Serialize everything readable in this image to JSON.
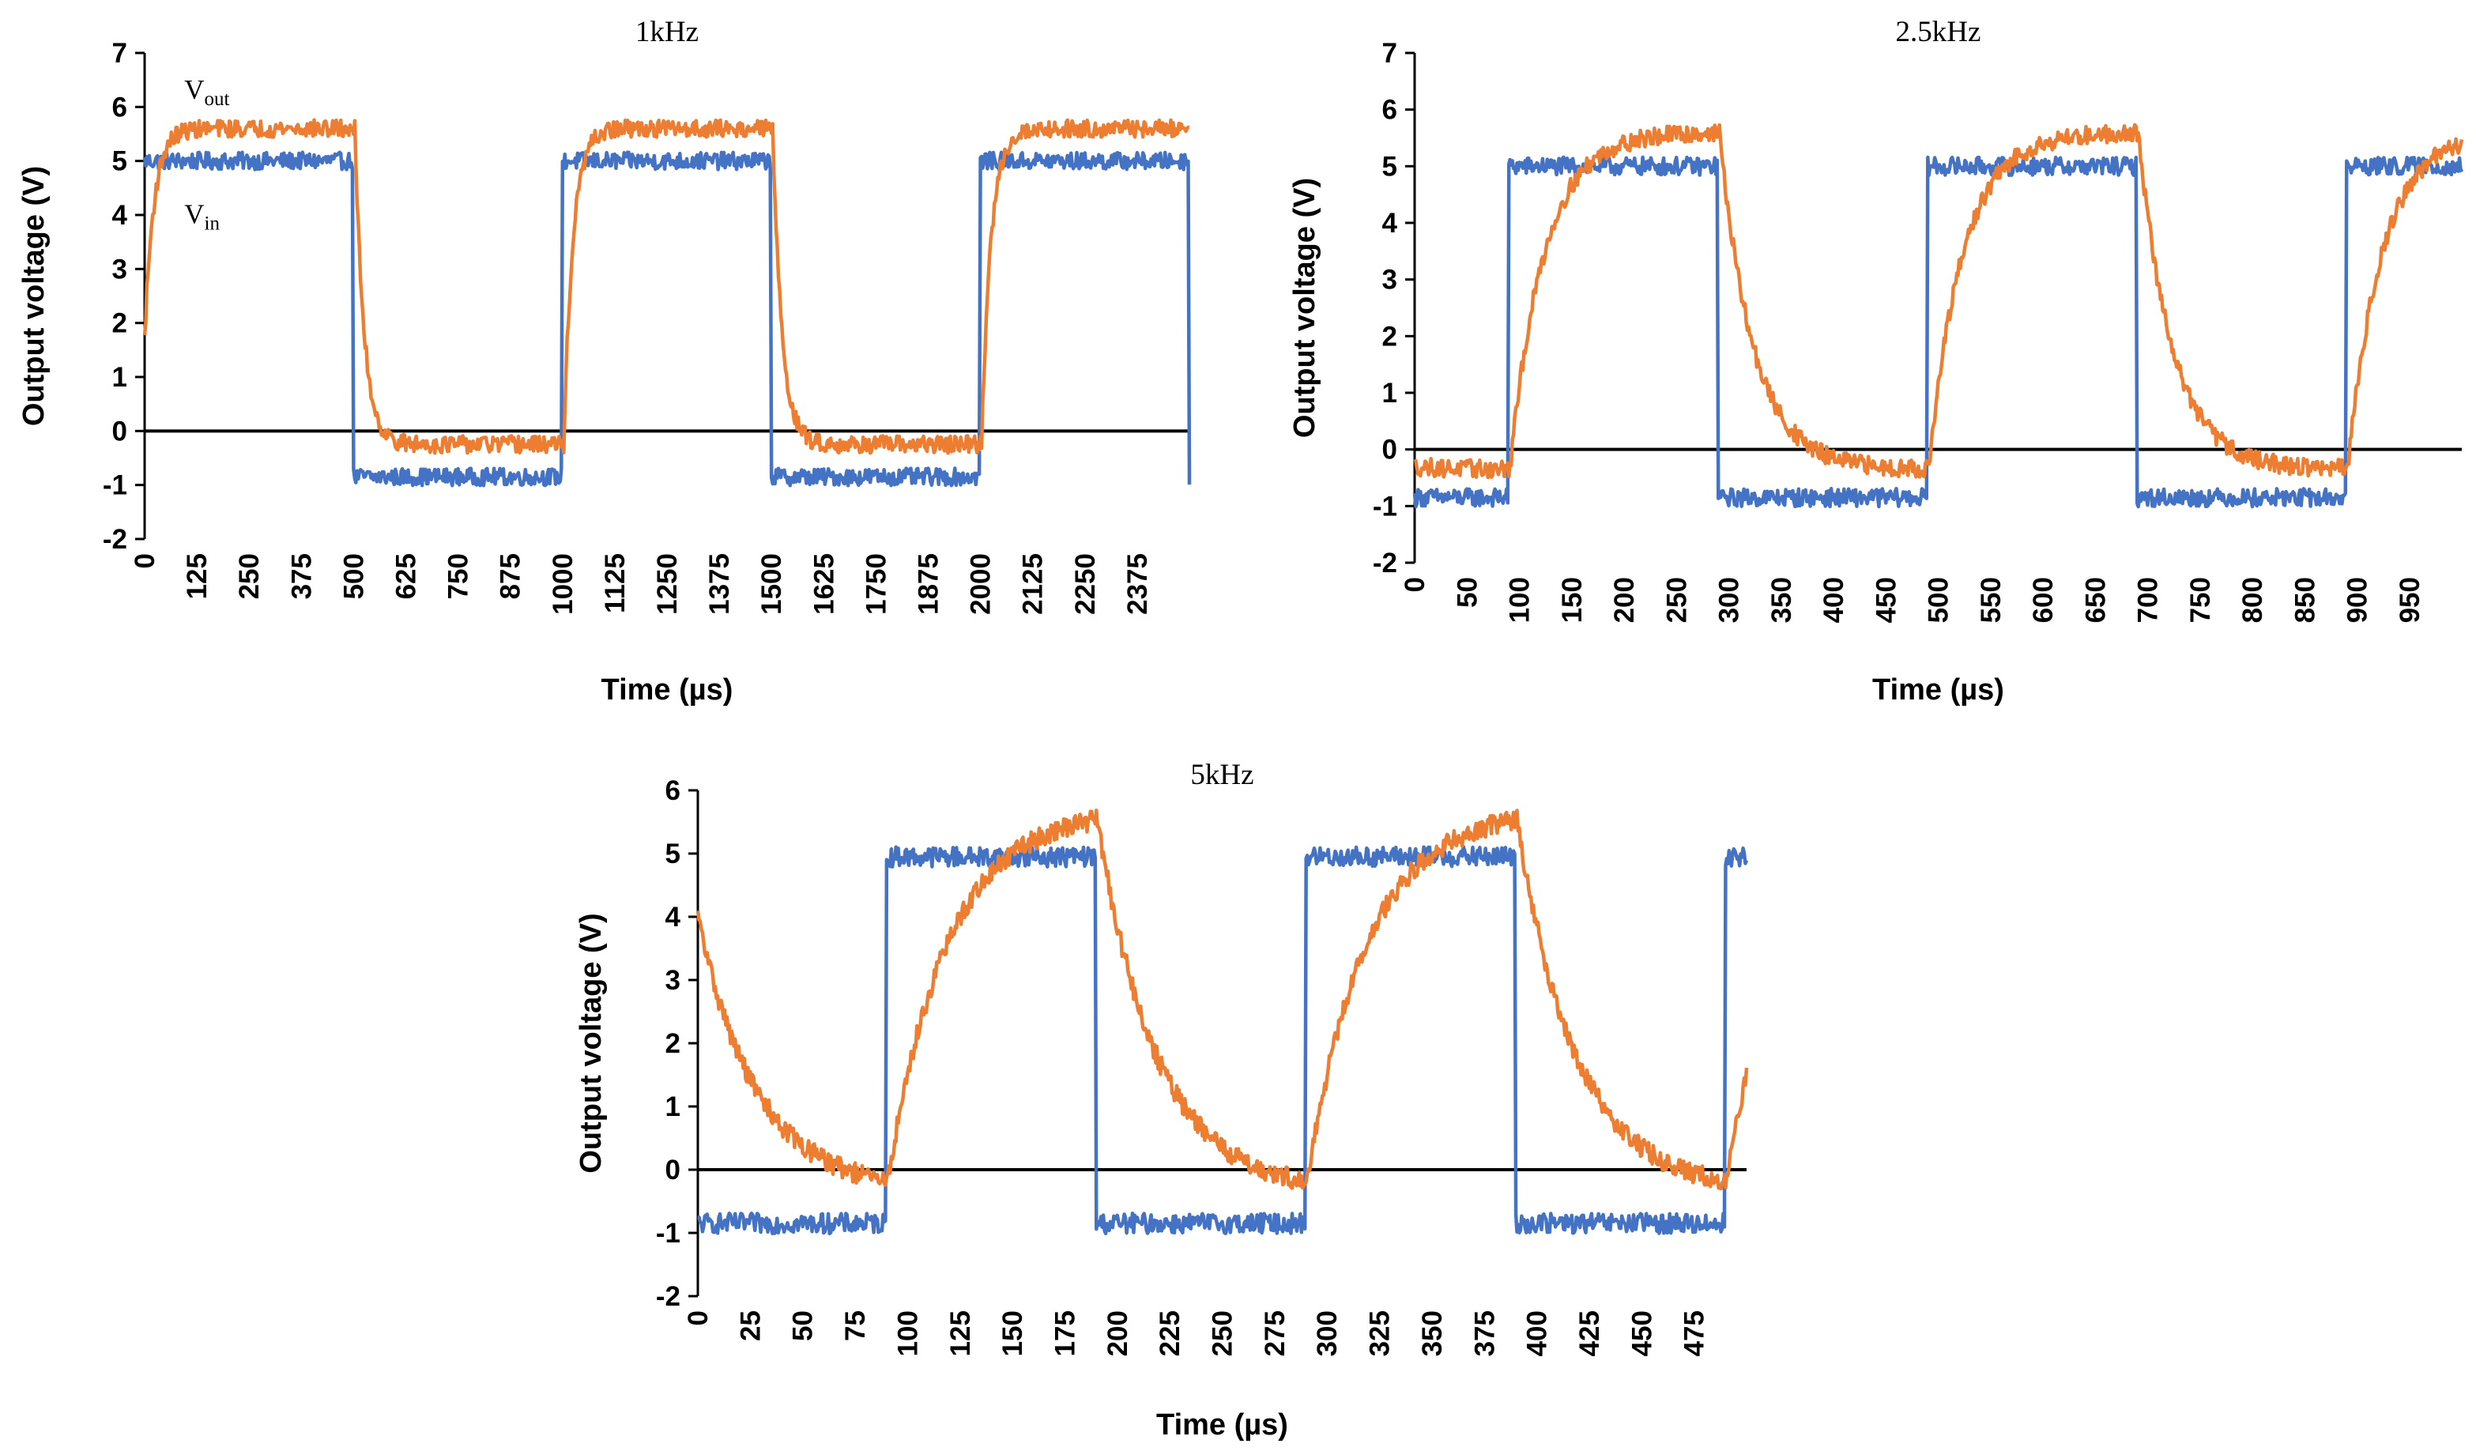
{
  "colors": {
    "vin": "#4472C4",
    "vout": "#ED7D31",
    "axis": "#000000"
  },
  "chart_data": [
    {
      "type": "line",
      "title": "1kHz",
      "xlabel": "Time (µs)",
      "ylabel": "Output voltage (V)",
      "xlim": [
        0,
        2500
      ],
      "ylim": [
        -2,
        7
      ],
      "xticks": [
        0,
        125,
        250,
        375,
        500,
        625,
        750,
        875,
        1000,
        1125,
        1250,
        1375,
        1500,
        1625,
        1750,
        1875,
        2000,
        2125,
        2250,
        2375
      ],
      "yticks": [
        -2,
        -1,
        0,
        1,
        2,
        3,
        4,
        5,
        6,
        7
      ],
      "annotations": [
        {
          "main": "V",
          "sub": "out",
          "x": 95,
          "y": 6.15
        },
        {
          "main": "V",
          "sub": "in",
          "x": 95,
          "y": 3.85
        }
      ],
      "series": [
        {
          "name": "Vin",
          "key": "vin",
          "level_high": 5.0,
          "level_low": -0.85,
          "period": 1000,
          "first_rise": 0,
          "rise_time": 6,
          "high_first": true
        },
        {
          "name": "Vout",
          "key": "vout",
          "level_high": 5.6,
          "level_low": -0.25,
          "period": 1000,
          "first_rise": 0,
          "start": 1.7,
          "tau": 22,
          "lag": 3,
          "high_first": true
        }
      ]
    },
    {
      "type": "line",
      "title": "2.5kHz",
      "xlabel": "Time (µs)",
      "ylabel": "Output voltage (V)",
      "xlim": [
        0,
        1000
      ],
      "ylim": [
        -2,
        7
      ],
      "xticks": [
        0,
        50,
        100,
        150,
        200,
        250,
        300,
        350,
        400,
        450,
        500,
        550,
        600,
        650,
        700,
        750,
        800,
        850,
        900,
        950
      ],
      "yticks": [
        -2,
        -1,
        0,
        1,
        2,
        3,
        4,
        5,
        6,
        7
      ],
      "annotations": [],
      "series": [
        {
          "name": "Vin",
          "key": "vin",
          "level_high": 5.0,
          "level_low": -0.85,
          "period": 400,
          "first_rise": 90,
          "rise_time": 3,
          "high_first": false
        },
        {
          "name": "Vout",
          "key": "vout",
          "level_high": 5.6,
          "level_low": -0.35,
          "period": 400,
          "first_rise": 90,
          "start": -0.3,
          "tau": 32,
          "lag": 2,
          "high_first": false
        }
      ]
    },
    {
      "type": "line",
      "title": "5kHz",
      "xlabel": "Time (µs)",
      "ylabel": "Output voltage (V)",
      "xlim": [
        0,
        500
      ],
      "ylim": [
        -2,
        6
      ],
      "xticks": [
        0,
        25,
        50,
        75,
        100,
        125,
        150,
        175,
        200,
        225,
        250,
        275,
        300,
        325,
        350,
        375,
        400,
        425,
        450,
        475
      ],
      "yticks": [
        -2,
        -1,
        0,
        1,
        2,
        3,
        4,
        5,
        6
      ],
      "annotations": [],
      "series": [
        {
          "name": "Vin",
          "key": "vin",
          "level_high": 4.95,
          "level_low": -0.85,
          "period": 200,
          "first_rise": 90,
          "rise_time": 2,
          "high_first": false
        },
        {
          "name": "Vout",
          "key": "vout",
          "level_high": 5.7,
          "level_low": -0.35,
          "period": 200,
          "first_rise": 90,
          "start": 4.0,
          "tau": 28,
          "lag": 1,
          "high_first": false
        }
      ]
    }
  ]
}
